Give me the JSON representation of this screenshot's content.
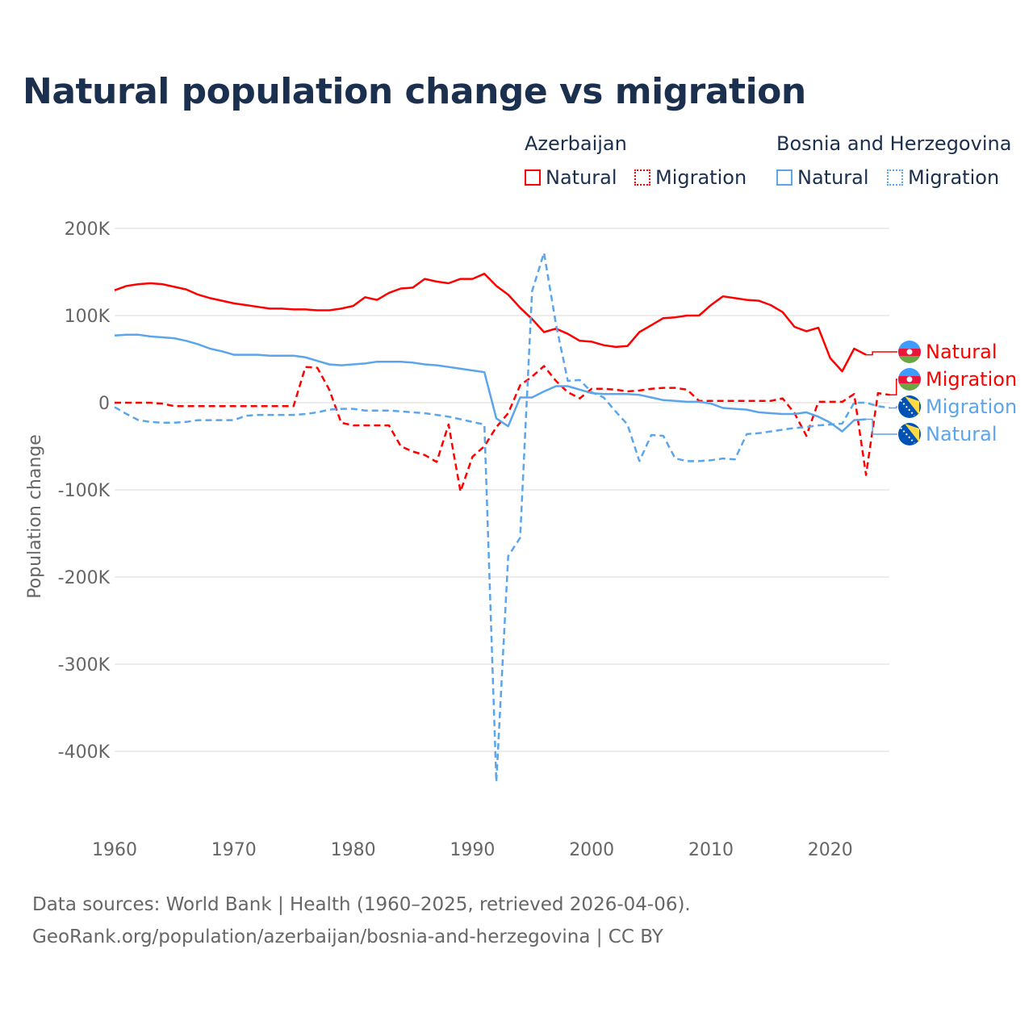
{
  "chart_data": {
    "type": "line",
    "title": "Natural population change vs migration",
    "ylabel": "Population change",
    "xlabel": "",
    "ylim": [
      -450000,
      200000
    ],
    "xlim": [
      1960,
      2025
    ],
    "yticks": [
      {
        "v": 200000,
        "label": "200K"
      },
      {
        "v": 100000,
        "label": "100K"
      },
      {
        "v": 0,
        "label": "0"
      },
      {
        "v": -100000,
        "label": "-100K"
      },
      {
        "v": -200000,
        "label": "-200K"
      },
      {
        "v": -300000,
        "label": "-300K"
      },
      {
        "v": -400000,
        "label": "-400K"
      }
    ],
    "xticks": [
      {
        "v": 1960,
        "label": "1960"
      },
      {
        "v": 1970,
        "label": "1970"
      },
      {
        "v": 1980,
        "label": "1980"
      },
      {
        "v": 1990,
        "label": "1990"
      },
      {
        "v": 2000,
        "label": "2000"
      },
      {
        "v": 2010,
        "label": "2010"
      },
      {
        "v": 2020,
        "label": "2020"
      }
    ],
    "grid": true,
    "legend_groups": [
      {
        "name": "Azerbaijan",
        "items": [
          "Natural",
          "Migration"
        ]
      },
      {
        "name": "Bosnia and Herzegovina",
        "items": [
          "Natural",
          "Migration"
        ]
      }
    ],
    "series": [
      {
        "country": "Azerbaijan",
        "name": "Natural",
        "color": "#ff0000",
        "dashed": false,
        "start": 1960,
        "values": [
          129,
          134,
          136,
          137,
          136,
          133,
          130,
          124,
          120,
          117,
          114,
          112,
          110,
          108,
          108,
          107,
          107,
          106,
          106,
          108,
          111,
          121,
          118,
          126,
          131,
          132,
          142,
          139,
          137,
          142,
          142,
          148,
          134,
          124,
          109,
          96,
          81,
          85,
          79,
          71,
          70,
          66,
          64,
          65,
          81,
          89,
          97,
          98,
          100,
          100,
          112,
          122,
          120,
          118,
          117,
          112,
          104,
          87,
          82,
          86,
          51,
          36,
          62,
          55
        ]
      },
      {
        "country": "Azerbaijan",
        "name": "Migration",
        "color": "#ff0000",
        "dashed": true,
        "start": 1960,
        "values": [
          0,
          0,
          0,
          0,
          -1,
          -4,
          -4,
          -4,
          -4,
          -4,
          -4,
          -4,
          -4,
          -4,
          -4,
          -4,
          41,
          40,
          15,
          -23,
          -26,
          -26,
          -26,
          -26,
          -50,
          -56,
          -60,
          -68,
          -25,
          -102,
          -62,
          -50,
          -28,
          -12,
          20,
          30,
          42,
          25,
          12,
          5,
          16,
          16,
          15,
          13,
          14,
          16,
          17,
          17,
          15,
          2,
          2,
          2,
          2,
          2,
          2,
          2,
          5,
          -12,
          -38,
          1,
          1,
          1,
          10,
          -83,
          11,
          9
        ]
      },
      {
        "country": "Bosnia and Herzegovina",
        "name": "Natural",
        "color": "#5aa5ec",
        "dashed": false,
        "start": 1960,
        "values": [
          77,
          78,
          78,
          76,
          75,
          74,
          71,
          67,
          62,
          59,
          55,
          55,
          55,
          54,
          54,
          54,
          52,
          48,
          44,
          43,
          44,
          45,
          47,
          47,
          47,
          46,
          44,
          43,
          41,
          39,
          37,
          35,
          -18,
          -27,
          6,
          6,
          13,
          19,
          19,
          15,
          11,
          10,
          10,
          10,
          9,
          6,
          3,
          2,
          1,
          1,
          -1,
          -6,
          -7,
          -8,
          -11,
          -12,
          -13,
          -13,
          -11,
          -16,
          -23,
          -33,
          -20,
          -19
        ]
      },
      {
        "country": "Bosnia and Herzegovina",
        "name": "Migration",
        "color": "#5aa5ec",
        "dashed": true,
        "start": 1960,
        "values": [
          -5,
          -13,
          -20,
          -22,
          -23,
          -23,
          -22,
          -20,
          -20,
          -20,
          -20,
          -15,
          -14,
          -14,
          -14,
          -14,
          -13,
          -11,
          -8,
          -7,
          -7,
          -9,
          -9,
          -9,
          -10,
          -11,
          -12,
          -14,
          -16,
          -19,
          -22,
          -25,
          -435,
          -176,
          -155,
          128,
          172,
          90,
          25,
          26,
          12,
          6,
          -10,
          -25,
          -67,
          -37,
          -38,
          -64,
          -67,
          -67,
          -66,
          -64,
          -65,
          -36,
          -35,
          -33,
          -31,
          -29,
          -28,
          -26,
          -25,
          -24,
          0,
          0,
          -4,
          -6
        ]
      }
    ],
    "value_units": "thousands",
    "end_labels": [
      {
        "text": "Natural",
        "series": 0
      },
      {
        "text": "Migration",
        "series": 1
      },
      {
        "text": "Migration",
        "series": 3
      },
      {
        "text": "Natural",
        "series": 2
      }
    ]
  },
  "legend": {
    "az": "Azerbaijan",
    "ba": "Bosnia and Herzegovina",
    "natural": "Natural",
    "migration": "Migration"
  },
  "source": {
    "line1": "Data sources: World Bank | Health (1960–2025, retrieved 2026-04-06).",
    "line2": "GeoRank.org/population/azerbaijan/bosnia-and-herzegovina | CC BY"
  }
}
